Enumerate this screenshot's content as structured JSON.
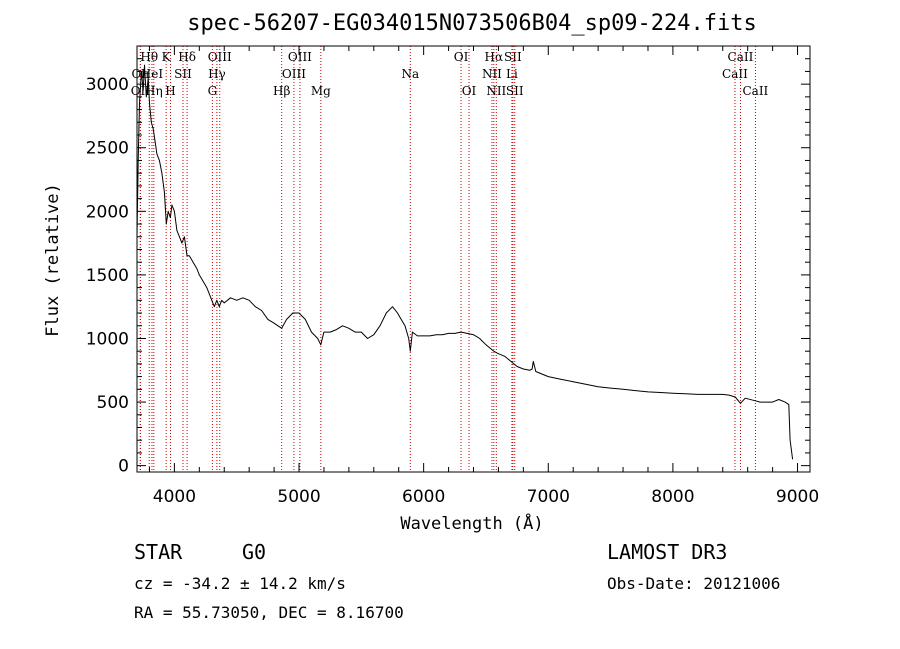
{
  "chart_data": {
    "type": "line",
    "title": "spec-56207-EG034015N073506B04_sp09-224.fits",
    "xlabel": "Wavelength (Å)",
    "ylabel": "Flux (relative)",
    "xlim": [
      3700,
      9100
    ],
    "ylim": [
      -50,
      3300
    ],
    "x_ticks": [
      4000,
      5000,
      6000,
      7000,
      8000,
      9000
    ],
    "y_ticks": [
      0,
      500,
      1000,
      1500,
      2000,
      2500,
      3000
    ],
    "series": [
      {
        "name": "flux",
        "x": [
          3700,
          3710,
          3720,
          3735,
          3750,
          3760,
          3775,
          3790,
          3800,
          3815,
          3830,
          3845,
          3860,
          3880,
          3900,
          3920,
          3935,
          3950,
          3968,
          3980,
          4000,
          4020,
          4040,
          4060,
          4080,
          4101,
          4120,
          4150,
          4180,
          4200,
          4230,
          4260,
          4300,
          4320,
          4340,
          4360,
          4380,
          4400,
          4450,
          4500,
          4550,
          4600,
          4650,
          4700,
          4750,
          4800,
          4861,
          4900,
          4950,
          5000,
          5050,
          5100,
          5150,
          5175,
          5200,
          5250,
          5300,
          5350,
          5400,
          5450,
          5500,
          5550,
          5600,
          5650,
          5700,
          5750,
          5790,
          5820,
          5850,
          5880,
          5893,
          5910,
          5950,
          6000,
          6050,
          6100,
          6150,
          6200,
          6250,
          6300,
          6350,
          6400,
          6450,
          6500,
          6563,
          6600,
          6650,
          6700,
          6750,
          6800,
          6850,
          6870,
          6880,
          6900,
          7000,
          7100,
          7200,
          7300,
          7400,
          7500,
          7600,
          7700,
          7800,
          7900,
          8000,
          8100,
          8200,
          8300,
          8400,
          8450,
          8500,
          8542,
          8580,
          8662,
          8700,
          8800,
          8850,
          8900,
          8930,
          8940,
          8960
        ],
        "values": [
          1800,
          2400,
          2850,
          3100,
          2950,
          3150,
          2900,
          3050,
          2850,
          2700,
          2650,
          2550,
          2450,
          2400,
          2300,
          2150,
          1900,
          2000,
          1950,
          2050,
          2000,
          1850,
          1800,
          1750,
          1800,
          1650,
          1650,
          1600,
          1550,
          1500,
          1450,
          1400,
          1300,
          1250,
          1300,
          1250,
          1300,
          1280,
          1320,
          1300,
          1320,
          1300,
          1250,
          1220,
          1150,
          1120,
          1080,
          1150,
          1200,
          1200,
          1150,
          1050,
          1000,
          950,
          1050,
          1050,
          1070,
          1100,
          1080,
          1050,
          1050,
          1000,
          1030,
          1100,
          1200,
          1250,
          1200,
          1150,
          1100,
          1000,
          900,
          1050,
          1020,
          1020,
          1020,
          1030,
          1030,
          1040,
          1040,
          1050,
          1040,
          1030,
          1000,
          950,
          900,
          880,
          860,
          820,
          780,
          760,
          750,
          760,
          820,
          740,
          700,
          680,
          660,
          640,
          620,
          610,
          600,
          590,
          580,
          575,
          570,
          565,
          560,
          560,
          560,
          555,
          540,
          490,
          530,
          510,
          500,
          500,
          520,
          500,
          480,
          200,
          50
        ]
      }
    ],
    "line_markers": [
      {
        "label": "Hθ",
        "x": 3798,
        "row": 1
      },
      {
        "label": "Oπ",
        "x": 3727,
        "row": 2
      },
      {
        "label": "OII",
        "x": 3727,
        "row": 3
      },
      {
        "label": "HeI",
        "x": 3820,
        "row": 2
      },
      {
        "label": "Hη",
        "x": 3835,
        "row": 3
      },
      {
        "label": "K",
        "x": 3934,
        "row": 1
      },
      {
        "label": "H",
        "x": 3969,
        "row": 3
      },
      {
        "label": "SII",
        "x": 4069,
        "row": 2
      },
      {
        "label": "Hδ",
        "x": 4102,
        "row": 1
      },
      {
        "label": "OIII",
        "x": 4364,
        "row": 1
      },
      {
        "label": "Hγ",
        "x": 4341,
        "row": 2
      },
      {
        "label": "G",
        "x": 4305,
        "row": 3
      },
      {
        "label": "Hβ",
        "x": 4861,
        "row": 3
      },
      {
        "label": "OIII",
        "x": 4959,
        "row": 2
      },
      {
        "label": "OIII",
        "x": 5007,
        "row": 1
      },
      {
        "label": "Mg",
        "x": 5175,
        "row": 3
      },
      {
        "label": "Na",
        "x": 5893,
        "row": 2
      },
      {
        "label": "OI",
        "x": 6300,
        "row": 1
      },
      {
        "label": "OI",
        "x": 6364,
        "row": 3
      },
      {
        "label": "Hα",
        "x": 6563,
        "row": 1
      },
      {
        "label": "NII",
        "x": 6548,
        "row": 2
      },
      {
        "label": "NII",
        "x": 6583,
        "row": 3
      },
      {
        "label": "SII",
        "x": 6716,
        "row": 1
      },
      {
        "label": "Li",
        "x": 6708,
        "row": 2
      },
      {
        "label": "SII",
        "x": 6731,
        "row": 3
      },
      {
        "label": "CaII",
        "x": 8542,
        "row": 1
      },
      {
        "label": "CaII",
        "x": 8498,
        "row": 2
      },
      {
        "label": "CaII",
        "x": 8662,
        "row": 3
      }
    ],
    "colors": {
      "spectrum": "#000000",
      "markers": "#cc0000",
      "axes": "#000000"
    }
  },
  "info": {
    "class_text": "STAR",
    "subclass_text": "G0",
    "survey_text": "LAMOST DR3",
    "cz_text": "cz = -34.2 ± 14.2 km/s",
    "obs_date_text": "Obs-Date: 20121006",
    "coords_text": "RA =  55.73050, DEC =   8.16700"
  }
}
